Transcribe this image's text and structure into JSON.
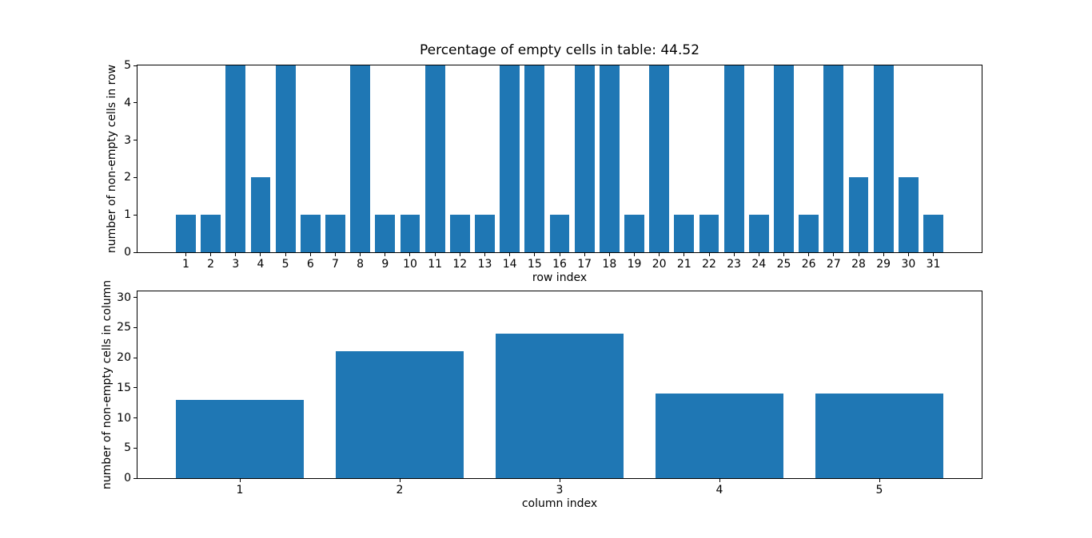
{
  "figure": {
    "background": "#ffffff",
    "bar_color": "#1f77b4",
    "axis_color": "#000000",
    "text_color": "#000000"
  },
  "chart_data": [
    {
      "type": "bar",
      "title": "Percentage of empty cells in table: 44.52",
      "xlabel": "row index",
      "ylabel": "number of non-empty cells in row",
      "x": [
        1,
        2,
        3,
        4,
        5,
        6,
        7,
        8,
        9,
        10,
        11,
        12,
        13,
        14,
        15,
        16,
        17,
        18,
        19,
        20,
        21,
        22,
        23,
        24,
        25,
        26,
        27,
        28,
        29,
        30,
        31
      ],
      "values": [
        1,
        1,
        5,
        2,
        5,
        1,
        1,
        5,
        1,
        1,
        5,
        1,
        1,
        5,
        5,
        1,
        5,
        5,
        1,
        5,
        1,
        1,
        5,
        1,
        5,
        1,
        5,
        2,
        5,
        2,
        1
      ],
      "bar_width": 0.8,
      "xlim": [
        -0.94,
        32.94
      ],
      "ylim": [
        0,
        5
      ],
      "yticks": [
        0,
        1,
        2,
        3,
        4,
        5
      ],
      "grid": false,
      "legend": null
    },
    {
      "type": "bar",
      "title": "",
      "xlabel": "column index",
      "ylabel": "number of non-empty cells in column",
      "x": [
        1,
        2,
        3,
        4,
        5
      ],
      "values": [
        13,
        21,
        24,
        14,
        14
      ],
      "bar_width": 0.8,
      "xlim": [
        0.36,
        5.64
      ],
      "ylim": [
        0,
        31
      ],
      "yticks": [
        0,
        5,
        10,
        15,
        20,
        25,
        30
      ],
      "grid": false,
      "legend": null
    }
  ]
}
